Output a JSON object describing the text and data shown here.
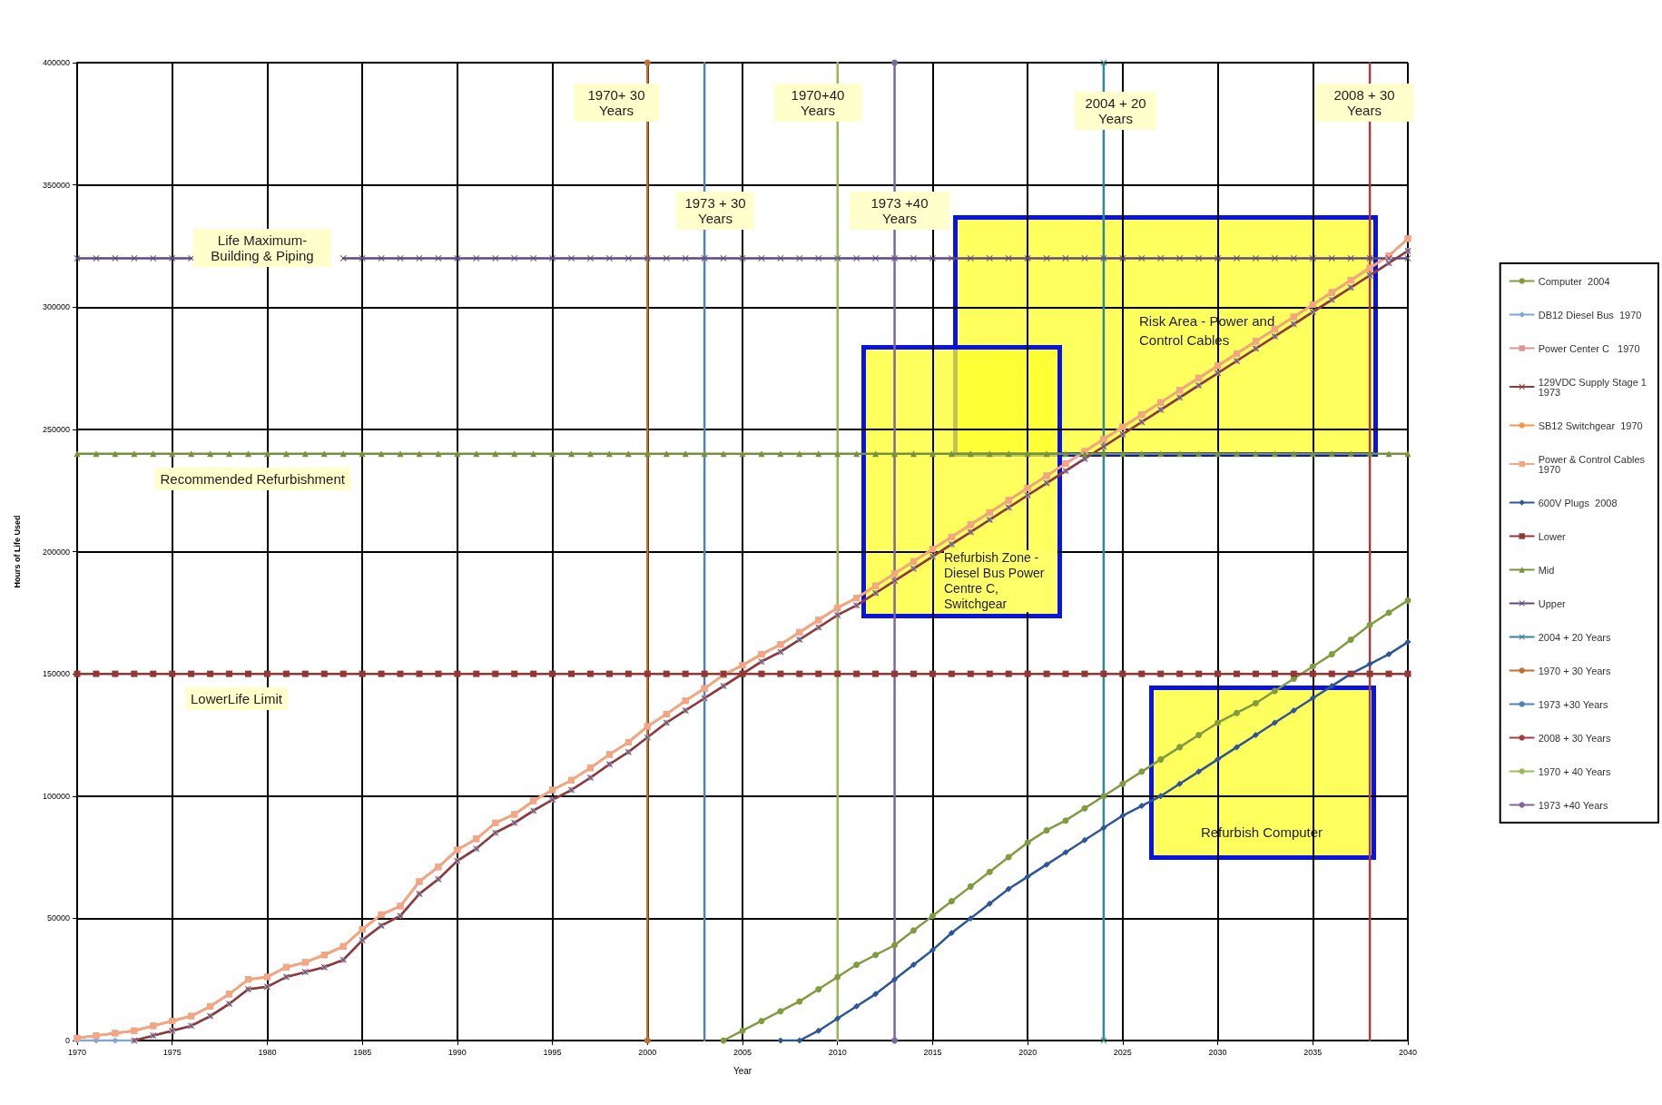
{
  "chart_data": {
    "type": "line",
    "xlabel": "Year",
    "ylabel": "Hours of Life Used",
    "x": [
      1970,
      1971,
      1972,
      1973,
      1974,
      1975,
      1976,
      1977,
      1978,
      1979,
      1980,
      1981,
      1982,
      1983,
      1984,
      1985,
      1986,
      1987,
      1988,
      1989,
      1990,
      1991,
      1992,
      1993,
      1994,
      1995,
      1996,
      1997,
      1998,
      1999,
      2000,
      2001,
      2002,
      2003,
      2004,
      2005,
      2006,
      2007,
      2008,
      2009,
      2010,
      2011,
      2012,
      2013,
      2014,
      2015,
      2016,
      2017,
      2018,
      2019,
      2020,
      2021,
      2022,
      2023,
      2024,
      2025,
      2026,
      2027,
      2028,
      2029,
      2030,
      2031,
      2032,
      2033,
      2034,
      2035,
      2036,
      2037,
      2038,
      2039,
      2040
    ],
    "xlim": [
      1970,
      2040
    ],
    "xticks": [
      1970,
      1975,
      1980,
      1985,
      1990,
      1995,
      2000,
      2005,
      2010,
      2015,
      2020,
      2025,
      2030,
      2035,
      2040
    ],
    "ylim": [
      0,
      400000
    ],
    "yticks": [
      0,
      50000,
      100000,
      150000,
      200000,
      250000,
      300000,
      350000,
      400000
    ],
    "grid": true,
    "legend": "right",
    "series": [
      {
        "name": "Computer  2004",
        "color": "#7f9c3e",
        "marker": "circle",
        "x": [
          2004,
          2005,
          2006,
          2007,
          2008,
          2009,
          2010,
          2011,
          2012,
          2013,
          2014,
          2015,
          2016,
          2017,
          2018,
          2019,
          2020,
          2021,
          2022,
          2023,
          2024,
          2025,
          2026,
          2027,
          2028,
          2029,
          2030,
          2031,
          2032,
          2033,
          2034,
          2035,
          2036,
          2037,
          2038,
          2039,
          2040
        ],
        "values": [
          0,
          4000,
          8000,
          12000,
          16000,
          21000,
          26000,
          31000,
          35000,
          39000,
          45000,
          51000,
          57000,
          63000,
          69000,
          75000,
          81000,
          86000,
          90000,
          95000,
          100000,
          105000,
          110000,
          115000,
          120000,
          125000,
          130000,
          134000,
          138000,
          143000,
          148000,
          153000,
          158000,
          164000,
          170000,
          175000,
          180000
        ]
      },
      {
        "name": "DB12 Diesel Bus  1970",
        "color": "#7ea6d8",
        "marker": "diamond",
        "values": [
          0,
          0,
          0,
          0,
          2000,
          4000,
          6000,
          10000,
          15000,
          21000,
          22000,
          26000,
          28000,
          30000,
          33000,
          41000,
          47000,
          51000,
          60000,
          66000,
          73500,
          78500,
          85000,
          89000,
          94000,
          98500,
          102500,
          107500,
          113000,
          118000,
          124000,
          130000,
          135000,
          140000,
          145000,
          150000,
          155000,
          159000,
          164000,
          169000,
          174000,
          178000,
          183000,
          188000,
          193000,
          198000,
          203000,
          208000,
          213000,
          218000,
          223000,
          228000,
          233000,
          238000,
          243000,
          248000,
          253000,
          258000,
          263000,
          268000,
          273000,
          278000,
          283000,
          288000,
          293000,
          298000,
          303000,
          308000,
          313000,
          318000,
          323000
        ]
      },
      {
        "name": "Power Center C   1970",
        "color": "#d99694",
        "marker": "square",
        "values": [
          1000,
          2000,
          3000,
          4000,
          6000,
          8000,
          10000,
          14000,
          19000,
          25000,
          26000,
          30000,
          32000,
          35000,
          38500,
          45500,
          51500,
          55000,
          65000,
          71000,
          78000,
          82500,
          89000,
          92500,
          98000,
          102500,
          106500,
          111500,
          117000,
          122000,
          128500,
          133500,
          139000,
          144000,
          149500,
          153500,
          158000,
          162000,
          167000,
          172000,
          177000,
          181000,
          186000,
          191000,
          196000,
          201000,
          206000,
          211000,
          216000,
          221000,
          226000,
          231000,
          236000,
          241000,
          246000,
          251000,
          256000,
          261000,
          266000,
          271000,
          276000,
          281000,
          286000,
          291000,
          296000,
          301000,
          306000,
          311000,
          316000,
          321000,
          328000
        ]
      },
      {
        "name": "129VDC Supply Stage 1 1973",
        "color": "#953735",
        "marker": "cross",
        "x": [
          1973,
          1974,
          1975,
          1976,
          1977,
          1978,
          1979,
          1980,
          1981,
          1982,
          1983,
          1984,
          1985,
          1986,
          1987,
          1988,
          1989,
          1990,
          1991,
          1992,
          1993,
          1994,
          1995,
          1996,
          1997,
          1998,
          1999,
          2000,
          2001,
          2002,
          2003,
          2004,
          2005,
          2006,
          2007,
          2008,
          2009,
          2010,
          2011,
          2012,
          2013,
          2014,
          2015,
          2016,
          2017,
          2018,
          2019,
          2020,
          2021,
          2022,
          2023,
          2024,
          2025,
          2026,
          2027,
          2028,
          2029,
          2030,
          2031,
          2032,
          2033,
          2034,
          2035,
          2036,
          2037,
          2038,
          2039,
          2040
        ],
        "values": [
          0,
          2000,
          4000,
          6000,
          10000,
          15000,
          21000,
          22000,
          26000,
          28000,
          30000,
          33000,
          41000,
          47000,
          51000,
          60000,
          66000,
          73500,
          78500,
          85000,
          89000,
          94000,
          98500,
          102500,
          107500,
          113000,
          118000,
          124000,
          130000,
          135000,
          140000,
          145000,
          150000,
          155000,
          159000,
          164000,
          169000,
          174000,
          178000,
          183000,
          188000,
          193000,
          198000,
          203000,
          208000,
          213000,
          218000,
          223000,
          228000,
          233000,
          238000,
          243000,
          248000,
          253000,
          258000,
          263000,
          268000,
          273000,
          278000,
          283000,
          288000,
          293000,
          298000,
          303000,
          308000,
          313000,
          318000,
          323000
        ]
      },
      {
        "name": "SB12 Switchgear  1970",
        "color": "#f79646",
        "marker": "none",
        "values": [
          1000,
          2000,
          3000,
          4000,
          6000,
          8000,
          10000,
          14000,
          19000,
          25000,
          26000,
          30000,
          32000,
          35000,
          38500,
          45500,
          51500,
          55000,
          65000,
          71000,
          78000,
          82500,
          89000,
          92500,
          98000,
          102500,
          106500,
          111500,
          117000,
          122000,
          128500,
          133500,
          139000,
          144000,
          149500,
          153500,
          158000,
          162000,
          167000,
          172000,
          177000,
          181000,
          186000,
          191000,
          196000,
          201000,
          206000,
          211000,
          216000,
          221000,
          226000,
          231000,
          236000,
          241000,
          246000,
          251000,
          256000,
          261000,
          266000,
          271000,
          276000,
          281000,
          286000,
          291000,
          296000,
          301000,
          306000,
          311000,
          316000,
          321000,
          328000
        ]
      },
      {
        "name": "Power & Control Cables 1970",
        "color": "#f4a582",
        "marker": "square",
        "values": [
          1000,
          2000,
          3000,
          4000,
          6000,
          8000,
          10000,
          14000,
          19000,
          25000,
          26000,
          30000,
          32000,
          35000,
          38500,
          45500,
          51500,
          55000,
          65000,
          71000,
          78000,
          82500,
          89000,
          92500,
          98000,
          102500,
          106500,
          111500,
          117000,
          122000,
          128500,
          133500,
          139000,
          144000,
          149500,
          153500,
          158000,
          162000,
          167000,
          172000,
          177000,
          181000,
          186000,
          191000,
          196000,
          201000,
          206000,
          211000,
          216000,
          221000,
          226000,
          231000,
          236000,
          241000,
          246000,
          251000,
          256000,
          261000,
          266000,
          271000,
          276000,
          281000,
          286000,
          291000,
          296000,
          301000,
          306000,
          311000,
          316000,
          321000,
          328000
        ]
      },
      {
        "name": "600V Plugs  2008",
        "color": "#2c5697",
        "marker": "diamond",
        "x": [
          2007,
          2008,
          2009,
          2010,
          2011,
          2012,
          2013,
          2014,
          2015,
          2016,
          2017,
          2018,
          2019,
          2020,
          2021,
          2022,
          2023,
          2024,
          2025,
          2026,
          2027,
          2028,
          2029,
          2030,
          2031,
          2032,
          2033,
          2034,
          2035,
          2036,
          2037,
          2038,
          2039,
          2040
        ],
        "values": [
          0,
          0,
          4000,
          9000,
          14000,
          19000,
          25000,
          31000,
          37000,
          44000,
          50000,
          56000,
          62000,
          67000,
          72000,
          77000,
          82000,
          87000,
          92000,
          96000,
          100000,
          105000,
          110000,
          115000,
          120000,
          125000,
          130000,
          135000,
          140000,
          145000,
          150000,
          154000,
          158000,
          163000
        ]
      },
      {
        "name": "Lower",
        "color": "#943634",
        "marker": "square",
        "values": [
          150000,
          150000,
          150000,
          150000,
          150000,
          150000,
          150000,
          150000,
          150000,
          150000,
          150000,
          150000,
          150000,
          150000,
          150000,
          150000,
          150000,
          150000,
          150000,
          150000,
          150000,
          150000,
          150000,
          150000,
          150000,
          150000,
          150000,
          150000,
          150000,
          150000,
          150000,
          150000,
          150000,
          150000,
          150000,
          150000,
          150000,
          150000,
          150000,
          150000,
          150000,
          150000,
          150000,
          150000,
          150000,
          150000,
          150000,
          150000,
          150000,
          150000,
          150000,
          150000,
          150000,
          150000,
          150000,
          150000,
          150000,
          150000,
          150000,
          150000,
          150000,
          150000,
          150000,
          150000,
          150000,
          150000,
          150000,
          150000,
          150000,
          150000,
          150000
        ]
      },
      {
        "name": "Mid",
        "color": "#76923c",
        "marker": "triangle",
        "values": [
          240000,
          240000,
          240000,
          240000,
          240000,
          240000,
          240000,
          240000,
          240000,
          240000,
          240000,
          240000,
          240000,
          240000,
          240000,
          240000,
          240000,
          240000,
          240000,
          240000,
          240000,
          240000,
          240000,
          240000,
          240000,
          240000,
          240000,
          240000,
          240000,
          240000,
          240000,
          240000,
          240000,
          240000,
          240000,
          240000,
          240000,
          240000,
          240000,
          240000,
          240000,
          240000,
          240000,
          240000,
          240000,
          240000,
          240000,
          240000,
          240000,
          240000,
          240000,
          240000,
          240000,
          240000,
          240000,
          240000,
          240000,
          240000,
          240000,
          240000,
          240000,
          240000,
          240000,
          240000,
          240000,
          240000,
          240000,
          240000,
          240000,
          240000,
          240000
        ]
      },
      {
        "name": "Upper",
        "color": "#604a7b",
        "marker": "cross",
        "values": [
          320000,
          320000,
          320000,
          320000,
          320000,
          320000,
          320000,
          null,
          null,
          null,
          null,
          null,
          null,
          null,
          320000,
          320000,
          320000,
          320000,
          320000,
          320000,
          320000,
          320000,
          320000,
          320000,
          320000,
          320000,
          320000,
          320000,
          320000,
          320000,
          320000,
          320000,
          320000,
          320000,
          320000,
          320000,
          320000,
          320000,
          320000,
          320000,
          320000,
          320000,
          320000,
          320000,
          320000,
          320000,
          320000,
          320000,
          320000,
          320000,
          320000,
          320000,
          320000,
          320000,
          320000,
          320000,
          320000,
          320000,
          320000,
          320000,
          320000,
          320000,
          320000,
          320000,
          320000,
          320000,
          320000,
          320000,
          320000,
          320000,
          320000
        ]
      },
      {
        "name": "2004 + 20 Years",
        "color": "#31859c",
        "marker": "cross",
        "x": [
          2024,
          2024
        ],
        "values": [
          0,
          400000
        ]
      },
      {
        "name": "1970 + 30 Years",
        "color": "#c0712f",
        "marker": "circle",
        "x": [
          2000,
          2000
        ],
        "values": [
          0,
          400000
        ]
      },
      {
        "name": "1973 +30 Years",
        "color": "#4f81bd",
        "marker": "none",
        "x": [
          2003,
          2003
        ],
        "values": [
          0,
          400000
        ]
      },
      {
        "name": "2008 + 30 Years",
        "color": "#a04040",
        "marker": "none",
        "x": [
          2038,
          2038
        ],
        "values": [
          0,
          400000
        ]
      },
      {
        "name": "1970 + 40 Years",
        "color": "#9bbb59",
        "marker": "none",
        "x": [
          2010,
          2010
        ],
        "values": [
          0,
          400000
        ]
      },
      {
        "name": "1973 +40 Years",
        "color": "#8064a2",
        "marker": "circle",
        "x": [
          2013,
          2013
        ],
        "values": [
          0,
          400000
        ]
      }
    ],
    "annotations": [
      "1970+ 30 Years",
      "1973 + 30 Years",
      "1970+40 Years",
      "1973 +40 Years",
      "2004 + 20 Years",
      "2008 + 30 Years",
      "Life Maximum- Building & Piping",
      "Recommended Refurbishment",
      "LowerLife Limit",
      "Risk Area - Power and Control Cables",
      "Refurbish Zone - Diesel Bus Power Centre C, Switchgear",
      "Refurbish Computer"
    ]
  }
}
